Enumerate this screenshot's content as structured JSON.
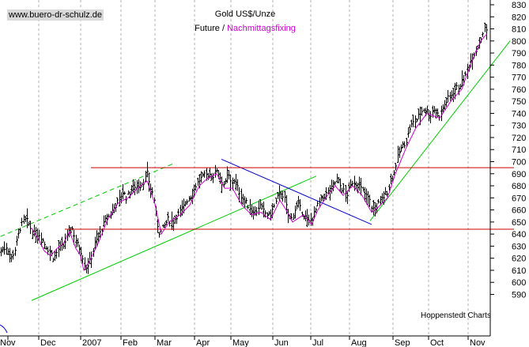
{
  "watermark": "www.buero-dr-schulz.de",
  "credit": "Hoppenstedt Charts",
  "chart_data": {
    "type": "ohlc",
    "title": "Gold US$/Unze",
    "legend": {
      "series1": "Future /",
      "series2": "Nachmittagsfixing"
    },
    "ylim": [
      585,
      835
    ],
    "y_ticks": [
      590,
      600,
      610,
      620,
      630,
      640,
      650,
      660,
      670,
      680,
      690,
      700,
      710,
      720,
      730,
      740,
      750,
      760,
      770,
      780,
      790,
      800,
      810,
      820,
      830
    ],
    "x_labels": [
      "Nov",
      "Dec",
      "2007",
      "Feb",
      "Mar",
      "Apr",
      "May",
      "Jun",
      "Jul",
      "Aug",
      "Sep",
      "Oct",
      "Nov"
    ],
    "colors": {
      "bars": "#000000",
      "fixing": "#cc00cc",
      "support": "#00cc00",
      "trend": "#0000cc",
      "range": "#cc0000"
    },
    "price_path": [
      [
        0,
        625
      ],
      [
        8,
        630
      ],
      [
        14,
        620
      ],
      [
        19,
        628
      ],
      [
        25,
        645
      ],
      [
        31,
        652
      ],
      [
        35,
        650
      ],
      [
        42,
        640
      ],
      [
        50,
        640
      ],
      [
        56,
        632
      ],
      [
        63,
        625
      ],
      [
        68,
        620
      ],
      [
        74,
        628
      ],
      [
        80,
        630
      ],
      [
        86,
        640
      ],
      [
        91,
        645
      ],
      [
        97,
        632
      ],
      [
        103,
        625
      ],
      [
        108,
        612
      ],
      [
        114,
        618
      ],
      [
        120,
        632
      ],
      [
        126,
        640
      ],
      [
        132,
        650
      ],
      [
        138,
        655
      ],
      [
        144,
        662
      ],
      [
        150,
        668
      ],
      [
        155,
        675
      ],
      [
        160,
        670
      ],
      [
        165,
        676
      ],
      [
        170,
        680
      ],
      [
        176,
        680
      ],
      [
        182,
        684
      ],
      [
        186,
        690
      ],
      [
        190,
        678
      ],
      [
        194,
        672
      ],
      [
        198,
        650
      ],
      [
        202,
        640
      ],
      [
        206,
        645
      ],
      [
        212,
        652
      ],
      [
        218,
        650
      ],
      [
        224,
        656
      ],
      [
        230,
        660
      ],
      [
        236,
        668
      ],
      [
        242,
        672
      ],
      [
        247,
        680
      ],
      [
        252,
        685
      ],
      [
        258,
        688
      ],
      [
        264,
        690
      ],
      [
        270,
        688
      ],
      [
        274,
        694
      ],
      [
        279,
        686
      ],
      [
        284,
        680
      ],
      [
        288,
        690
      ],
      [
        292,
        682
      ],
      [
        296,
        685
      ],
      [
        301,
        677
      ],
      [
        306,
        670
      ],
      [
        312,
        665
      ],
      [
        318,
        660
      ],
      [
        323,
        658
      ],
      [
        328,
        664
      ],
      [
        334,
        658
      ],
      [
        340,
        655
      ],
      [
        346,
        662
      ],
      [
        352,
        672
      ],
      [
        356,
        675
      ],
      [
        360,
        668
      ],
      [
        364,
        656
      ],
      [
        368,
        652
      ],
      [
        372,
        660
      ],
      [
        377,
        664
      ],
      [
        382,
        658
      ],
      [
        386,
        654
      ],
      [
        390,
        650
      ],
      [
        394,
        652
      ],
      [
        398,
        658
      ],
      [
        402,
        664
      ],
      [
        406,
        668
      ],
      [
        410,
        672
      ],
      [
        415,
        675
      ],
      [
        420,
        678
      ],
      [
        426,
        686
      ],
      [
        430,
        680
      ],
      [
        434,
        676
      ],
      [
        438,
        672
      ],
      [
        442,
        678
      ],
      [
        446,
        684
      ],
      [
        450,
        682
      ],
      [
        454,
        680
      ],
      [
        458,
        676
      ],
      [
        462,
        672
      ],
      [
        466,
        670
      ],
      [
        470,
        662
      ],
      [
        474,
        660
      ],
      [
        478,
        665
      ],
      [
        482,
        668
      ],
      [
        486,
        672
      ],
      [
        490,
        676
      ],
      [
        494,
        686
      ],
      [
        498,
        690
      ],
      [
        501,
        700
      ],
      [
        505,
        708
      ],
      [
        510,
        714
      ],
      [
        514,
        718
      ],
      [
        518,
        728
      ],
      [
        522,
        732
      ],
      [
        527,
        735
      ],
      [
        531,
        740
      ],
      [
        536,
        744
      ],
      [
        540,
        742
      ],
      [
        544,
        738
      ],
      [
        548,
        744
      ],
      [
        552,
        740
      ],
      [
        556,
        738
      ],
      [
        561,
        746
      ],
      [
        566,
        752
      ],
      [
        571,
        756
      ],
      [
        575,
        760
      ],
      [
        580,
        762
      ],
      [
        584,
        766
      ],
      [
        588,
        770
      ],
      [
        592,
        778
      ],
      [
        596,
        786
      ],
      [
        600,
        790
      ],
      [
        604,
        796
      ],
      [
        608,
        802
      ],
      [
        612,
        810
      ],
      [
        618,
        808
      ]
    ],
    "fixing_path": [
      [
        40,
        645
      ],
      [
        50,
        634
      ],
      [
        56,
        626
      ],
      [
        64,
        622
      ],
      [
        72,
        628
      ],
      [
        80,
        632
      ],
      [
        88,
        642
      ],
      [
        96,
        628
      ],
      [
        102,
        622
      ],
      [
        106,
        610
      ],
      [
        112,
        616
      ],
      [
        124,
        632
      ],
      [
        136,
        652
      ],
      [
        150,
        666
      ],
      [
        162,
        670
      ],
      [
        174,
        678
      ],
      [
        186,
        684
      ],
      [
        196,
        665
      ],
      [
        204,
        640
      ],
      [
        214,
        650
      ],
      [
        228,
        656
      ],
      [
        240,
        664
      ],
      [
        252,
        680
      ],
      [
        262,
        686
      ],
      [
        274,
        690
      ],
      [
        284,
        678
      ],
      [
        294,
        678
      ],
      [
        306,
        664
      ],
      [
        318,
        656
      ],
      [
        330,
        658
      ],
      [
        342,
        652
      ],
      [
        354,
        668
      ],
      [
        362,
        660
      ],
      [
        370,
        650
      ],
      [
        384,
        656
      ],
      [
        394,
        648
      ],
      [
        402,
        660
      ],
      [
        414,
        672
      ],
      [
        424,
        680
      ],
      [
        434,
        672
      ],
      [
        446,
        680
      ],
      [
        458,
        672
      ],
      [
        470,
        658
      ],
      [
        478,
        662
      ],
      [
        490,
        670
      ],
      [
        500,
        690
      ],
      [
        514,
        712
      ],
      [
        526,
        728
      ],
      [
        540,
        740
      ],
      [
        556,
        736
      ],
      [
        570,
        750
      ],
      [
        584,
        760
      ],
      [
        596,
        782
      ],
      [
        608,
        800
      ],
      [
        616,
        806
      ]
    ],
    "lines": [
      {
        "name": "support-upper-dashed",
        "from": [
          0.5,
          638
        ],
        "to": [
          218,
          698
        ],
        "dashed": true
      },
      {
        "name": "support-lower",
        "from": [
          40,
          585
        ],
        "to": [
          400,
          688
        ]
      },
      {
        "name": "support-steep",
        "from": [
          468,
          651
        ],
        "to": [
          645,
          800
        ]
      },
      {
        "name": "downtrend",
        "from": [
          280,
          702
        ],
        "to": [
          470,
          648
        ]
      },
      {
        "name": "resistance",
        "from": [
          115,
          695
        ],
        "to": [
          650,
          695
        ]
      },
      {
        "name": "range-bottom",
        "from": [
          82,
          644
        ],
        "to": [
          650,
          644
        ]
      }
    ]
  }
}
